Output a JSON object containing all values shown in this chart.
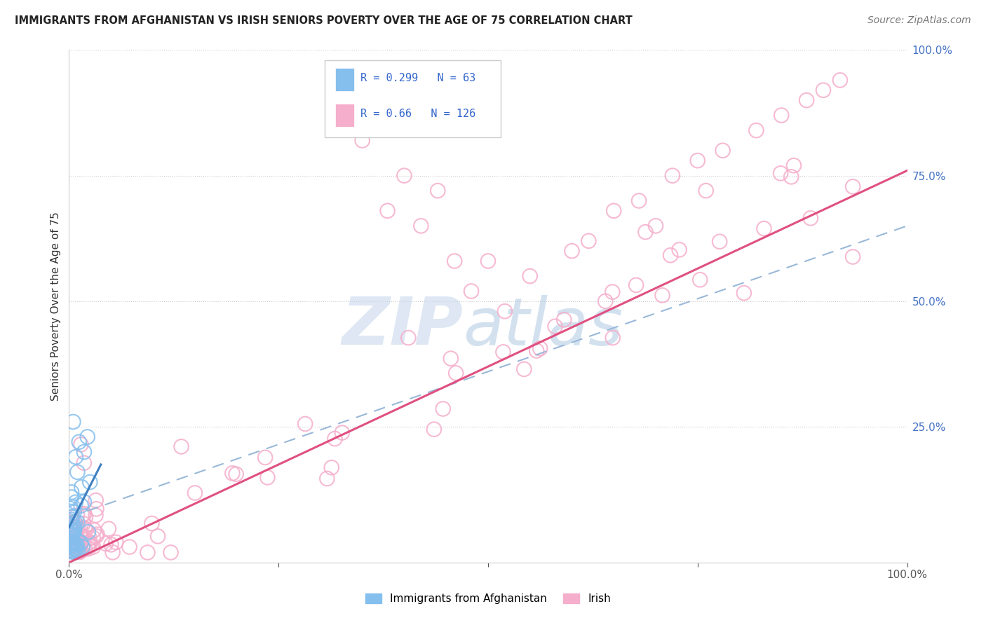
{
  "title": "IMMIGRANTS FROM AFGHANISTAN VS IRISH SENIORS POVERTY OVER THE AGE OF 75 CORRELATION CHART",
  "source": "Source: ZipAtlas.com",
  "ylabel": "Seniors Poverty Over the Age of 75",
  "xlabel": "",
  "xlim": [
    0,
    1.0
  ],
  "ylim": [
    -0.02,
    1.0
  ],
  "blue_R": 0.299,
  "blue_N": 63,
  "pink_R": 0.66,
  "pink_N": 126,
  "blue_color": "#85BFEE",
  "pink_color": "#F5AECB",
  "blue_line_color": "#3E7FC1",
  "pink_line_color": "#E05080",
  "dash_line_color": "#99B8D8",
  "watermark_zip_color": "#C8D8EC",
  "watermark_atlas_color": "#A8C4E0",
  "legend_label_blue": "Immigrants from Afghanistan",
  "legend_label_pink": "Irish"
}
